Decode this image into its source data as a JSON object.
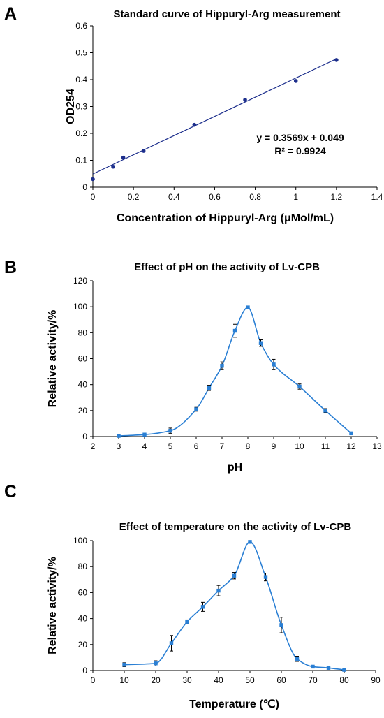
{
  "figure": {
    "panels": [
      "A",
      "B",
      "C"
    ]
  },
  "colors": {
    "fit_line": "#1c2e8c",
    "marker_a": "#1c2e8c",
    "curve": "#2a7fd4",
    "marker": "#2a7fd4",
    "error_bar": "#000000"
  },
  "chart_data": [
    {
      "type": "scatter",
      "title": "Standard curve of Hippuryl-Arg measurement",
      "xlabel": "Concentration of Hippuryl-Arg (μMol/mL)",
      "ylabel": "OD254",
      "xlim": [
        0,
        1.4
      ],
      "ylim": [
        0,
        0.6
      ],
      "x_ticks": [
        "0",
        "0.2",
        "0.4",
        "0.6",
        "0.8",
        "1",
        "1.2",
        "1.4"
      ],
      "y_ticks": [
        "0",
        "0.1",
        "0.2",
        "0.3",
        "0.4",
        "0.5",
        "0.6"
      ],
      "x": [
        0,
        0.1,
        0.15,
        0.25,
        0.5,
        0.75,
        1.0,
        1.2
      ],
      "y": [
        0.03,
        0.076,
        0.11,
        0.135,
        0.232,
        0.325,
        0.395,
        0.473
      ],
      "trendline": {
        "slope": 0.3569,
        "intercept": 0.049
      },
      "annotations": [
        "y = 0.3569x + 0.049",
        "R² = 0.9924"
      ],
      "grid": false,
      "legend": "none"
    },
    {
      "type": "line",
      "title": "Effect of pH on the activity of Lv-CPB",
      "xlabel": "pH",
      "ylabel": "Relative activity/%",
      "xlim": [
        2,
        13
      ],
      "ylim": [
        0,
        120
      ],
      "x_ticks": [
        "2",
        "3",
        "4",
        "5",
        "6",
        "7",
        "8",
        "9",
        "10",
        "11",
        "12",
        "13"
      ],
      "y_ticks": [
        "0",
        "20",
        "40",
        "60",
        "80",
        "100",
        "120"
      ],
      "x": [
        3,
        4,
        5,
        6,
        6.5,
        7,
        7.5,
        8,
        8.5,
        9,
        10,
        11,
        12
      ],
      "y": [
        0.5,
        1.5,
        4.5,
        21,
        37.5,
        54.5,
        81.5,
        99.5,
        72,
        55.5,
        38.5,
        20,
        2.5
      ],
      "error": [
        0.5,
        1,
        2,
        1.5,
        2,
        3,
        5,
        1,
        2.5,
        4,
        2,
        1.5,
        1
      ],
      "grid": false,
      "legend": "none"
    },
    {
      "type": "line",
      "title": "Effect of temperature on the activity of Lv-CPB",
      "xlabel": "Temperature (℃)",
      "ylabel": "Relative activity/%",
      "xlim": [
        0,
        90
      ],
      "ylim": [
        0,
        100
      ],
      "x_ticks": [
        "0",
        "10",
        "20",
        "30",
        "40",
        "50",
        "60",
        "70",
        "80",
        "90"
      ],
      "y_ticks": [
        "0",
        "20",
        "40",
        "60",
        "80",
        "100"
      ],
      "x": [
        10,
        20,
        25,
        30,
        35,
        40,
        45,
        50,
        55,
        60,
        65,
        70,
        75,
        80
      ],
      "y": [
        4.5,
        5.5,
        21,
        37.5,
        49,
        61.5,
        73,
        99,
        72,
        35,
        9,
        3,
        2,
        0.5
      ],
      "error": [
        1.5,
        2,
        6,
        1.5,
        3.5,
        4,
        2.5,
        1,
        3,
        6,
        2,
        0.5,
        0.5,
        0.5
      ],
      "grid": false,
      "legend": "none"
    }
  ]
}
